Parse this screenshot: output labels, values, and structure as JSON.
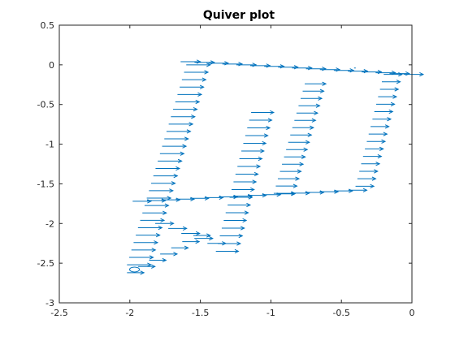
{
  "chart_data": {
    "type": "quiver",
    "title": "Quiver plot",
    "xlabel": "",
    "ylabel": "",
    "xlim": [
      -2.5,
      0
    ],
    "ylim": [
      -3,
      0.5
    ],
    "x_ticks": [
      -2.5,
      -2,
      -1.5,
      -1,
      -0.5,
      0
    ],
    "y_ticks": [
      -3,
      -2.5,
      -2,
      -1.5,
      -1,
      -0.5,
      0,
      0.5
    ],
    "x_tick_labels": [
      "-2.5",
      "-2",
      "-1.5",
      "-1",
      "-0.5",
      "0"
    ],
    "y_tick_labels": [
      "-3",
      "-2.5",
      "-2",
      "-1.5",
      "-1",
      "-0.5",
      "0",
      "0.5"
    ],
    "grid": false,
    "box": true,
    "color": "#0072BD",
    "arrow_groups": [
      {
        "name": "top-edge",
        "from": [
          -1.64,
          0.04
        ],
        "to": [
          -0.06,
          -0.12
        ],
        "count": 17,
        "u": 0.14,
        "v": 0
      },
      {
        "name": "left-stroke",
        "from": [
          -1.6,
          0.0
        ],
        "to": [
          -2.02,
          -2.52
        ],
        "count": 28,
        "u": 0.17,
        "v": 0
      },
      {
        "name": "inner-stroke",
        "from": [
          -1.14,
          -0.6
        ],
        "to": [
          -1.39,
          -2.35
        ],
        "count": 19,
        "u": 0.16,
        "v": 0
      },
      {
        "name": "middle-stroke",
        "from": [
          -0.76,
          -0.24
        ],
        "to": [
          -0.98,
          -1.62
        ],
        "count": 16,
        "u": 0.15,
        "v": 0
      },
      {
        "name": "right-stroke",
        "from": [
          -0.2,
          -0.12
        ],
        "to": [
          -0.4,
          -1.53
        ],
        "count": 16,
        "u": 0.13,
        "v": 0
      },
      {
        "name": "crossbar",
        "from": [
          -1.98,
          -1.72
        ],
        "to": [
          -0.45,
          -1.58
        ],
        "count": 16,
        "u": 0.13,
        "v": 0
      },
      {
        "name": "lower-left-lobe",
        "from": [
          -1.55,
          -2.15
        ],
        "to": [
          -2.02,
          -2.62
        ],
        "count": 7,
        "u": 0.12,
        "v": 0
      },
      {
        "name": "lower-mid-lobe",
        "from": [
          -1.82,
          -2.0
        ],
        "to": [
          -1.45,
          -2.25
        ],
        "count": 5,
        "u": 0.13,
        "v": 0
      }
    ],
    "small_loop": {
      "x": -1.99,
      "y": -2.58
    },
    "stray_point": {
      "x": -0.41,
      "y": -0.04
    }
  }
}
